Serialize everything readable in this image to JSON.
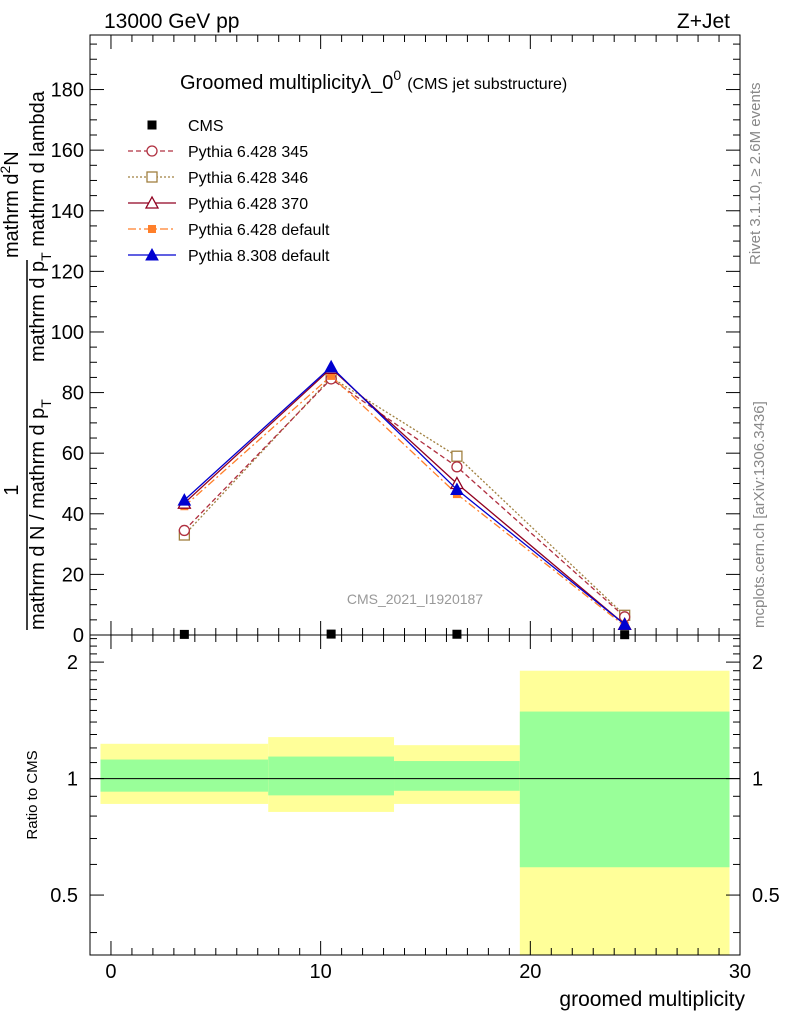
{
  "header": {
    "left": "13000 GeV pp",
    "right": "Z+Jet"
  },
  "side": {
    "rivet": "Rivet 3.1.10, ≥ 2.6M events",
    "mcplots": "mcplots.cern.ch [arXiv:1306.3436]"
  },
  "colors": {
    "cms": "#000000",
    "py345": "#b03040",
    "py346": "#a08040",
    "py370": "#900020",
    "pydef": "#ff7f2a",
    "py8": "#0000d0",
    "band_stat": "#99ff99",
    "band_syst": "#ffff99"
  },
  "chart_data": [
    {
      "type": "line",
      "title": "Groomed multiplicityλ_0",
      "title_sup": "0",
      "title_note": "(CMS jet substructure)",
      "watermark": "CMS_2021_I1920187",
      "ylabel_numer_1": "1",
      "ylabel_denom_1": "mathrm d N / mathrm d p",
      "ylabel_denom_sub_1": "T",
      "ylabel_numer_2": "mathrm d",
      "ylabel_numer_sup_2": "2",
      "ylabel_numer_tail_2": "N",
      "ylabel_denom_2": "mathrm d p",
      "ylabel_denom_sub_2": "T",
      "ylabel_denom_tail_2": " mathrm d lambda",
      "xlim": [
        -1,
        30
      ],
      "ylim": [
        0,
        198
      ],
      "yticks": [
        0,
        20,
        40,
        60,
        80,
        100,
        120,
        140,
        160,
        180
      ],
      "ytick_labels": [
        "0",
        "20",
        "40",
        "60",
        "80",
        "100",
        "120",
        "140",
        "160",
        "180"
      ],
      "legend_position": "top-left",
      "series": [
        {
          "name": "CMS",
          "key": "cms",
          "style": "data",
          "x": [
            3.5,
            10.5,
            16.5,
            24.5
          ],
          "y": [
            0.2,
            0.3,
            0.25,
            0.1
          ]
        },
        {
          "name": "Pythia 6.428 345",
          "key": "py345",
          "style": "circle",
          "x": [
            3.5,
            10.5,
            16.5,
            24.5
          ],
          "y": [
            34.5,
            84.5,
            55.5,
            6.0
          ]
        },
        {
          "name": "Pythia 6.428 346",
          "key": "py346",
          "style": "square",
          "x": [
            3.5,
            10.5,
            16.5,
            24.5
          ],
          "y": [
            33.0,
            85.0,
            59.0,
            6.5
          ]
        },
        {
          "name": "Pythia 6.428 370",
          "key": "py370",
          "style": "triangle-open",
          "x": [
            3.5,
            10.5,
            16.5,
            24.5
          ],
          "y": [
            43.5,
            88.0,
            50.0,
            3.5
          ]
        },
        {
          "name": "Pythia 6.428 default",
          "key": "pydef",
          "style": "square-filled",
          "x": [
            3.5,
            10.5,
            16.5,
            24.5
          ],
          "y": [
            42.5,
            85.5,
            46.5,
            3.0
          ]
        },
        {
          "name": "Pythia 8.308 default",
          "key": "py8",
          "style": "triangle-filled",
          "x": [
            3.5,
            10.5,
            16.5,
            24.5
          ],
          "y": [
            44.5,
            88.5,
            48.0,
            3.5
          ]
        }
      ]
    },
    {
      "type": "area",
      "ylabel": "Ratio to CMS",
      "xlabel": "groomed multiplicity",
      "xlim": [
        -1,
        30
      ],
      "xticks": [
        0,
        10,
        20,
        30
      ],
      "xtick_labels": [
        "0",
        "10",
        "20",
        "30"
      ],
      "ylim": [
        0.35,
        2.35
      ],
      "yscale": "log",
      "yticks": [
        0.5,
        1,
        2
      ],
      "ytick_labels": [
        "0.5",
        "1",
        "2"
      ],
      "reference_line": 1,
      "bins": [
        {
          "x": [
            -0.5,
            7.5
          ],
          "stat": [
            0.925,
            1.12
          ],
          "syst": [
            0.86,
            1.23
          ]
        },
        {
          "x": [
            7.5,
            13.5
          ],
          "stat": [
            0.905,
            1.14
          ],
          "syst": [
            0.82,
            1.28
          ]
        },
        {
          "x": [
            13.5,
            19.5
          ],
          "stat": [
            0.93,
            1.11
          ],
          "syst": [
            0.86,
            1.22
          ]
        },
        {
          "x": [
            19.5,
            29.5
          ],
          "stat": [
            0.59,
            1.49
          ],
          "syst": [
            0.35,
            1.9
          ]
        }
      ]
    }
  ]
}
